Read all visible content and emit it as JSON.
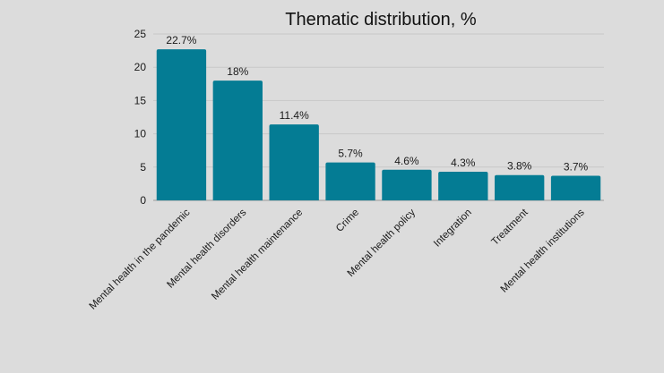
{
  "chart_data": {
    "type": "bar",
    "title": "Thematic distribution, %",
    "xlabel": "",
    "ylabel": "",
    "categories": [
      "Mental health in the pandemic",
      "Mental health disorders",
      "Mental health maintenance",
      "Crime",
      "Mental health policy",
      "Integration",
      "Treatment",
      "Mental health institutions"
    ],
    "values": [
      22.7,
      18,
      11.4,
      5.7,
      4.6,
      4.3,
      3.8,
      3.7
    ],
    "data_labels": [
      "22.7%",
      "18%",
      "11.4%",
      "5.7%",
      "4.6%",
      "4.3%",
      "3.8%",
      "3.7%"
    ],
    "ylim": [
      0,
      25
    ],
    "yticks": [
      0,
      5,
      10,
      15,
      20,
      25
    ],
    "grid": true,
    "legend": "none",
    "bar_color": "#047c94"
  }
}
